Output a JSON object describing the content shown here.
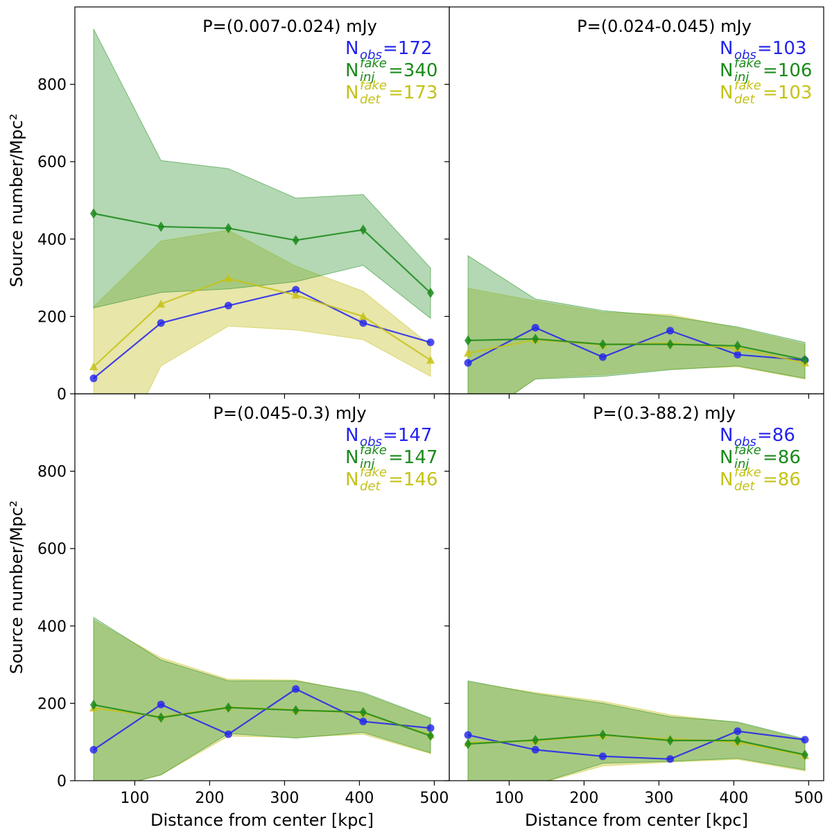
{
  "colors": {
    "obs": "#2222ee",
    "inj": "#1a8a1a",
    "det": "#c4c218",
    "inj_fill": "#4aa34a",
    "det_fill": "#c8c433"
  },
  "axes": {
    "xlabel": "Distance from center [kpc]",
    "ylabel": "Source number/Mpc²",
    "xlim": [
      20,
      520
    ],
    "ylim": [
      0,
      1000
    ],
    "xticks": [
      100,
      200,
      300,
      400,
      500
    ],
    "yticks": [
      0,
      200,
      400,
      600,
      800
    ]
  },
  "legend": {
    "n_main": "N",
    "obs_sub": "obs",
    "inj_sub": "inj",
    "det_sub": "det",
    "fake_sup": "fake"
  },
  "chart_data": [
    {
      "type": "line",
      "title": "P=(0.007-0.024) mJy",
      "counts": {
        "obs": "=172",
        "inj": "=340",
        "det": "=173"
      },
      "x": [
        45,
        135,
        225,
        315,
        405,
        495
      ],
      "series": [
        {
          "name": "N_obs",
          "marker": "circle",
          "values": [
            40,
            183,
            228,
            269,
            183,
            133
          ]
        },
        {
          "name": "N_inj_fake",
          "marker": "diamond",
          "values": [
            466,
            432,
            428,
            397,
            424,
            261
          ],
          "band_low": [
            222,
            262,
            271,
            290,
            332,
            195
          ],
          "band_high": [
            943,
            603,
            582,
            506,
            515,
            325
          ]
        },
        {
          "name": "N_det_fake",
          "marker": "triangle",
          "values": [
            70,
            232,
            298,
            255,
            200,
            87
          ],
          "band_low": [
            -280,
            72,
            175,
            165,
            140,
            45
          ],
          "band_high": [
            225,
            395,
            423,
            330,
            265,
            125
          ]
        }
      ]
    },
    {
      "type": "line",
      "title": "P=(0.024-0.045) mJy",
      "counts": {
        "obs": "=103",
        "inj": "=106",
        "det": "=103"
      },
      "x": [
        45,
        135,
        225,
        315,
        405,
        495
      ],
      "series": [
        {
          "name": "N_obs",
          "marker": "circle",
          "values": [
            80,
            171,
            95,
            163,
            101,
            87
          ]
        },
        {
          "name": "N_inj_fake",
          "marker": "diamond",
          "values": [
            138,
            142,
            128,
            128,
            124,
            88
          ],
          "band_low": [
            -80,
            38,
            45,
            62,
            72,
            40
          ],
          "band_high": [
            357,
            245,
            215,
            200,
            173,
            133
          ]
        },
        {
          "name": "N_det_fake",
          "marker": "triangle",
          "values": [
            105,
            140,
            127,
            131,
            118,
            80
          ],
          "band_low": [
            -90,
            40,
            50,
            64,
            70,
            38
          ],
          "band_high": [
            273,
            240,
            211,
            205,
            170,
            128
          ]
        }
      ]
    },
    {
      "type": "line",
      "title": "P=(0.045-0.3) mJy",
      "counts": {
        "obs": "=147",
        "inj": "=147",
        "det": "=146"
      },
      "x": [
        45,
        135,
        225,
        315,
        405,
        495
      ],
      "series": [
        {
          "name": "N_obs",
          "marker": "circle",
          "values": [
            80,
            197,
            120,
            237,
            153,
            136
          ]
        },
        {
          "name": "N_inj_fake",
          "marker": "diamond",
          "values": [
            196,
            163,
            189,
            182,
            177,
            116
          ],
          "band_low": [
            -30,
            15,
            122,
            110,
            125,
            72
          ],
          "band_high": [
            422,
            312,
            258,
            258,
            228,
            162
          ]
        },
        {
          "name": "N_det_fake",
          "marker": "triangle",
          "values": [
            188,
            165,
            190,
            183,
            175,
            118
          ],
          "band_low": [
            -30,
            15,
            115,
            112,
            120,
            70
          ],
          "band_high": [
            415,
            318,
            262,
            260,
            225,
            160
          ]
        }
      ]
    },
    {
      "type": "line",
      "title": "P=(0.3-88.2) mJy",
      "counts": {
        "obs": "=86",
        "inj": "=86",
        "det": "=86"
      },
      "x": [
        45,
        135,
        225,
        315,
        405,
        495
      ],
      "series": [
        {
          "name": "N_obs",
          "marker": "circle",
          "values": [
            118,
            80,
            63,
            56,
            128,
            106
          ]
        },
        {
          "name": "N_inj_fake",
          "marker": "diamond",
          "values": [
            95,
            105,
            119,
            104,
            104,
            67
          ],
          "band_low": [
            -60,
            -10,
            45,
            50,
            58,
            28
          ],
          "band_high": [
            258,
            225,
            200,
            165,
            152,
            108
          ]
        },
        {
          "name": "N_det_fake",
          "marker": "triangle",
          "values": [
            98,
            103,
            117,
            108,
            100,
            65
          ],
          "band_low": [
            -60,
            -10,
            38,
            48,
            55,
            25
          ],
          "band_high": [
            255,
            228,
            205,
            170,
            150,
            105
          ]
        }
      ]
    }
  ]
}
